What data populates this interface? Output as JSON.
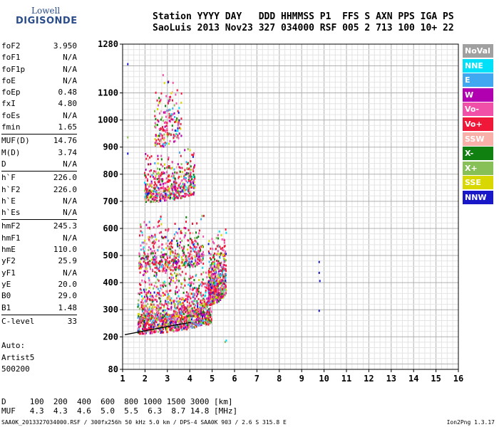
{
  "logo": {
    "line1": "Lowell",
    "line2": "DIGISONDE"
  },
  "header": {
    "line1": "Station YYYY DAY   DDD HHMMSS P1  FFS S AXN PPS IGA PS",
    "line2": "SaoLuis 2013 Nov23 327 034000 RSF 005 2 713 100 10+ 22"
  },
  "params": [
    {
      "label": "foF2",
      "value": "3.950"
    },
    {
      "label": "foF1",
      "value": "N/A"
    },
    {
      "label": "foF1p",
      "value": "N/A"
    },
    {
      "label": "foE",
      "value": "N/A"
    },
    {
      "label": "foEp",
      "value": "0.48"
    },
    {
      "label": "fxI",
      "value": "4.80"
    },
    {
      "label": "foEs",
      "value": "N/A"
    },
    {
      "label": "fmin",
      "value": "1.65"
    },
    {
      "label": "MUF(D)",
      "value": "14.76",
      "sep": true
    },
    {
      "label": "M(D)",
      "value": "3.74"
    },
    {
      "label": "D",
      "value": "N/A"
    },
    {
      "label": "h`F",
      "value": "226.0",
      "sep": true
    },
    {
      "label": "h`F2",
      "value": "226.0"
    },
    {
      "label": "h`E",
      "value": "N/A"
    },
    {
      "label": "h`Es",
      "value": "N/A"
    },
    {
      "label": "hmF2",
      "value": "245.3",
      "sep": true
    },
    {
      "label": "hmF1",
      "value": "N/A"
    },
    {
      "label": "hmE",
      "value": "110.0"
    },
    {
      "label": "yF2",
      "value": "25.9"
    },
    {
      "label": "yF1",
      "value": "N/A"
    },
    {
      "label": "yE",
      "value": "20.0"
    },
    {
      "label": "B0",
      "value": "29.0"
    },
    {
      "label": "B1",
      "value": "1.48"
    },
    {
      "label": "C-level",
      "value": "33",
      "sep": true
    }
  ],
  "auto": {
    "line1": "Auto:",
    "line2": "Artist5",
    "line3": "500200"
  },
  "muf_table": {
    "line1": "D     100  200  400  600  800 1000 1500 3000 [km]",
    "line2": "MUF   4.3  4.3  4.6  5.0  5.5  6.3  8.7 14.8 [MHz]"
  },
  "footer": {
    "left": "SAA0K_2013327034000.RSF / 300fx256h 50 kHz 5.0 km / DPS-4 SAA0K 903 / 2.6 S 315.8 E",
    "right": "Ion2Png 1.3.17"
  },
  "legend": [
    {
      "label": "NoVal",
      "color": "#a0a0a0"
    },
    {
      "label": "NNE",
      "color": "#00e0f8"
    },
    {
      "label": "E",
      "color": "#40a8f0"
    },
    {
      "label": "W",
      "color": "#b000b0"
    },
    {
      "label": "Vo-",
      "color": "#f050a8"
    },
    {
      "label": "Vo+",
      "color": "#f01838"
    },
    {
      "label": "SSW",
      "color": "#f8b0a8"
    },
    {
      "label": "X-",
      "color": "#108010"
    },
    {
      "label": "X+",
      "color": "#88c058"
    },
    {
      "label": "SSE",
      "color": "#d8d800"
    },
    {
      "label": "NNW",
      "color": "#1818c8"
    }
  ],
  "chart_data": {
    "type": "scatter",
    "xlim": [
      1,
      16
    ],
    "ylim": [
      80,
      1280
    ],
    "x_ticks": [
      "1",
      "2",
      "3",
      "4",
      "5",
      "6",
      "7",
      "8",
      "9",
      "10",
      "11",
      "12",
      "13",
      "14",
      "15",
      "16"
    ],
    "y_ticks": [
      "80",
      "200",
      "300",
      "400",
      "500",
      "600",
      "700",
      "800",
      "900",
      "1000",
      "1100",
      "1280"
    ],
    "grid": true,
    "trace_curve": [
      [
        1.1,
        208
      ],
      [
        2.0,
        222
      ],
      [
        3.0,
        238
      ],
      [
        3.8,
        250
      ],
      [
        4.05,
        253
      ]
    ],
    "echo_bands": [
      {
        "name": "F-trace-1",
        "x": [
          1.65,
          4.95
        ],
        "y": [
          215,
          460
        ],
        "density": "high"
      },
      {
        "name": "F-trace-2",
        "x": [
          1.7,
          4.6
        ],
        "y": [
          440,
          650
        ],
        "density": "medium"
      },
      {
        "name": "F-trace-3",
        "x": [
          1.95,
          4.2
        ],
        "y": [
          700,
          900
        ],
        "density": "medium"
      },
      {
        "name": "F-trace-4",
        "x": [
          2.4,
          3.6
        ],
        "y": [
          900,
          1200
        ],
        "density": "low"
      },
      {
        "name": "spread-right",
        "x": [
          4.8,
          5.6
        ],
        "y": [
          320,
          600
        ],
        "density": "medium"
      }
    ],
    "isolated_points": [
      {
        "x": 9.75,
        "y": 480,
        "color": "#1818c8"
      },
      {
        "x": 9.75,
        "y": 440,
        "color": "#1818c8"
      },
      {
        "x": 9.78,
        "y": 410,
        "color": "#1818c8"
      },
      {
        "x": 9.75,
        "y": 300,
        "color": "#1818c8"
      },
      {
        "x": 1.2,
        "y": 1210,
        "color": "#1818c8"
      },
      {
        "x": 1.2,
        "y": 880,
        "color": "#1818c8"
      },
      {
        "x": 1.2,
        "y": 940,
        "color": "#88c058"
      },
      {
        "x": 5.55,
        "y": 185,
        "color": "#88c058"
      },
      {
        "x": 5.6,
        "y": 190,
        "color": "#00e0f8"
      }
    ]
  }
}
